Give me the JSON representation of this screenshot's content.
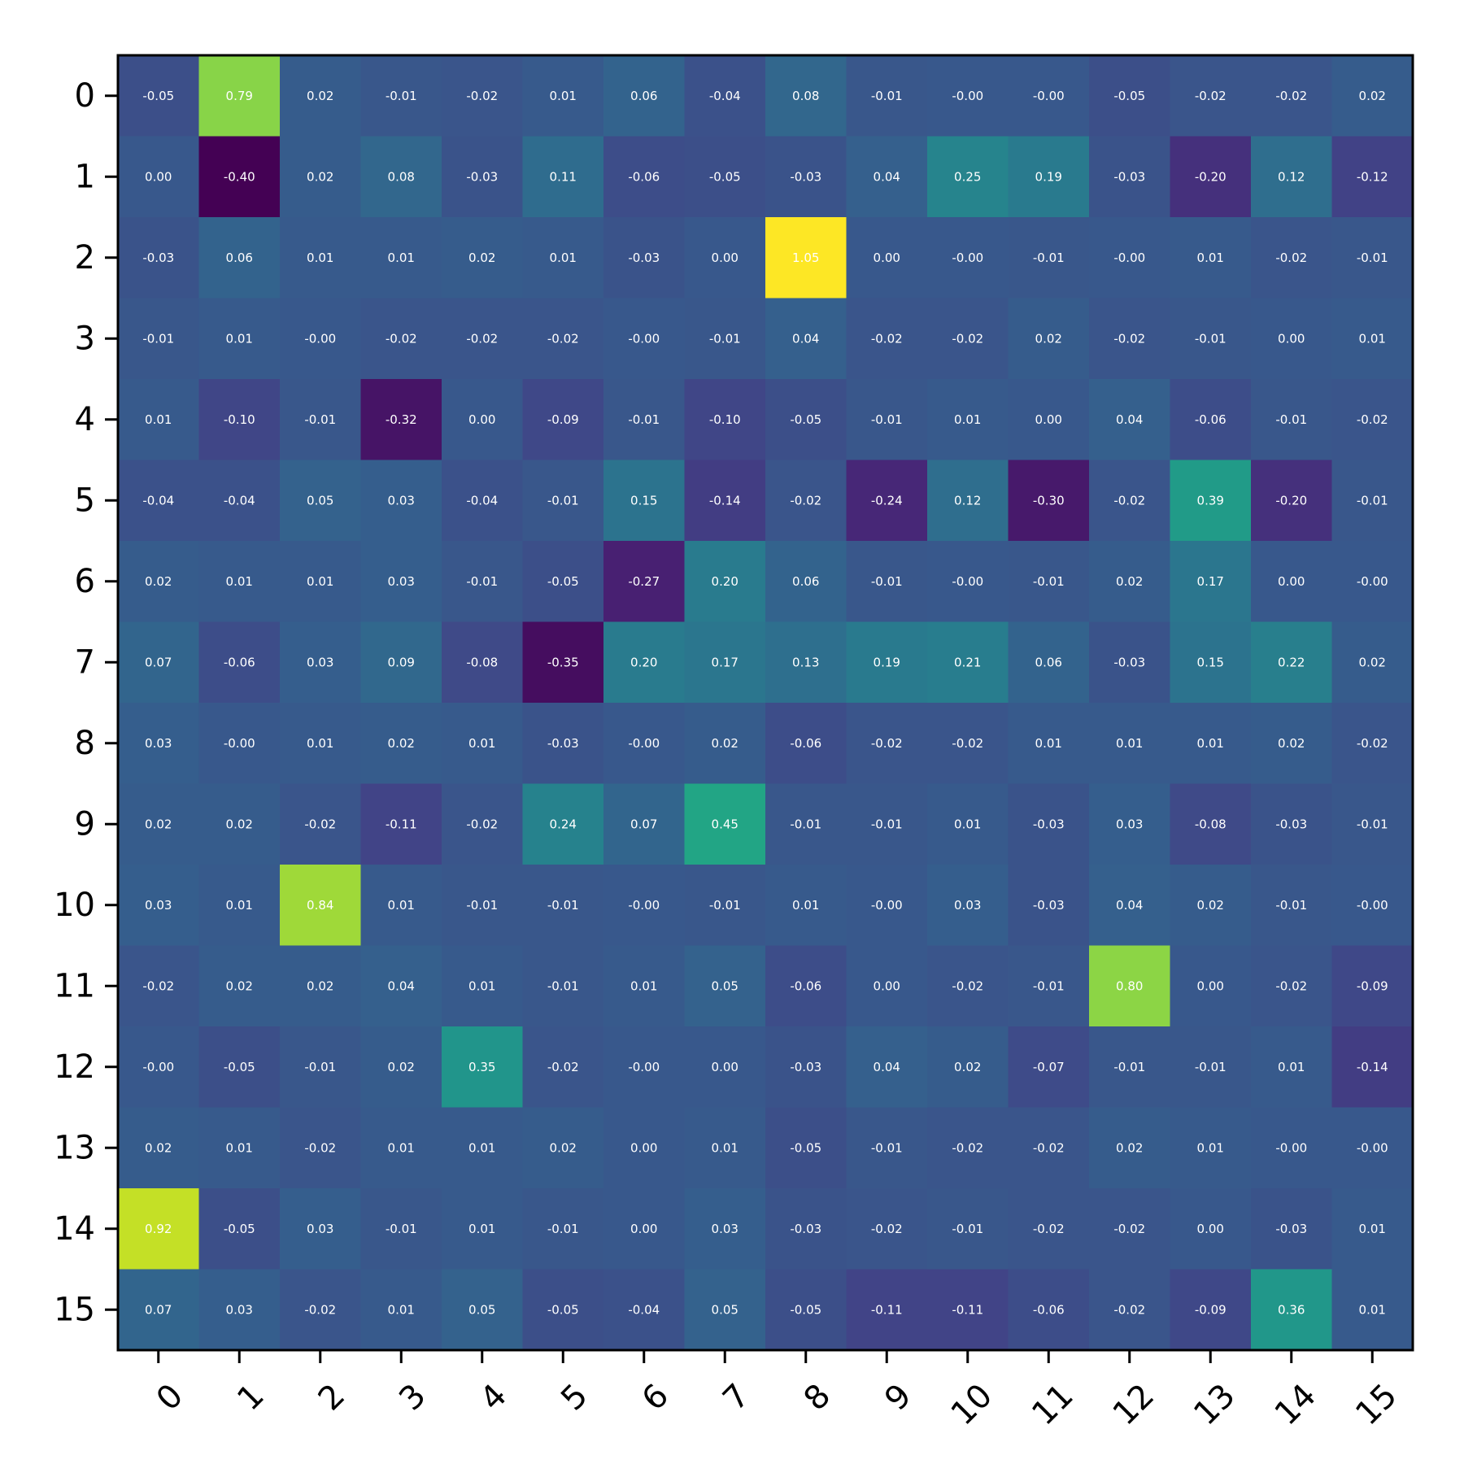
{
  "chart_data": {
    "type": "heatmap",
    "title": "",
    "xlabel": "",
    "ylabel": "",
    "colormap": "viridis",
    "vmin": -0.4,
    "vmax": 1.05,
    "x_categories": [
      "0",
      "1",
      "2",
      "3",
      "4",
      "5",
      "6",
      "7",
      "8",
      "9",
      "10",
      "11",
      "12",
      "13",
      "14",
      "15"
    ],
    "y_categories": [
      "0",
      "1",
      "2",
      "3",
      "4",
      "5",
      "6",
      "7",
      "8",
      "9",
      "10",
      "11",
      "12",
      "13",
      "14",
      "15"
    ],
    "values": [
      [
        -0.05,
        0.79,
        0.02,
        -0.01,
        -0.02,
        0.01,
        0.06,
        -0.04,
        0.08,
        -0.01,
        -0.0,
        -0.0,
        -0.05,
        -0.02,
        -0.02,
        0.02
      ],
      [
        0.0,
        -0.4,
        0.02,
        0.08,
        -0.03,
        0.11,
        -0.06,
        -0.05,
        -0.03,
        0.04,
        0.25,
        0.19,
        -0.03,
        -0.2,
        0.12,
        -0.12
      ],
      [
        -0.03,
        0.06,
        0.01,
        0.01,
        0.02,
        0.01,
        -0.03,
        0.0,
        1.05,
        0.0,
        -0.0,
        -0.01,
        -0.0,
        0.01,
        -0.02,
        -0.01
      ],
      [
        -0.01,
        0.01,
        -0.0,
        -0.02,
        -0.02,
        -0.02,
        -0.0,
        -0.01,
        0.04,
        -0.02,
        -0.02,
        0.02,
        -0.02,
        -0.01,
        0.0,
        0.01
      ],
      [
        0.01,
        -0.1,
        -0.01,
        -0.32,
        0.0,
        -0.09,
        -0.01,
        -0.1,
        -0.05,
        -0.01,
        0.01,
        0.0,
        0.04,
        -0.06,
        -0.01,
        -0.02
      ],
      [
        -0.04,
        -0.04,
        0.05,
        0.03,
        -0.04,
        -0.01,
        0.15,
        -0.14,
        -0.02,
        -0.24,
        0.12,
        -0.3,
        -0.02,
        0.39,
        -0.2,
        -0.01
      ],
      [
        0.02,
        0.01,
        0.01,
        0.03,
        -0.01,
        -0.05,
        -0.27,
        0.2,
        0.06,
        -0.01,
        -0.0,
        -0.01,
        0.02,
        0.17,
        0.0,
        -0.0
      ],
      [
        0.07,
        -0.06,
        0.03,
        0.09,
        -0.08,
        -0.35,
        0.2,
        0.17,
        0.13,
        0.19,
        0.21,
        0.06,
        -0.03,
        0.15,
        0.22,
        0.02
      ],
      [
        0.03,
        -0.0,
        0.01,
        0.02,
        0.01,
        -0.03,
        -0.0,
        0.02,
        -0.06,
        -0.02,
        -0.02,
        0.01,
        0.01,
        0.01,
        0.02,
        -0.02
      ],
      [
        0.02,
        0.02,
        -0.02,
        -0.11,
        -0.02,
        0.24,
        0.07,
        0.45,
        -0.01,
        -0.01,
        0.01,
        -0.03,
        0.03,
        -0.08,
        -0.03,
        -0.01
      ],
      [
        0.03,
        0.01,
        0.84,
        0.01,
        -0.01,
        -0.01,
        -0.0,
        -0.01,
        0.01,
        -0.0,
        0.03,
        -0.03,
        0.04,
        0.02,
        -0.01,
        -0.0
      ],
      [
        -0.02,
        0.02,
        0.02,
        0.04,
        0.01,
        -0.01,
        0.01,
        0.05,
        -0.06,
        0.0,
        -0.02,
        -0.01,
        0.8,
        0.0,
        -0.02,
        -0.09
      ],
      [
        -0.0,
        -0.05,
        -0.01,
        0.02,
        0.35,
        -0.02,
        -0.0,
        0.0,
        -0.03,
        0.04,
        0.02,
        -0.07,
        -0.01,
        -0.01,
        0.01,
        -0.14
      ],
      [
        0.02,
        0.01,
        -0.02,
        0.01,
        0.01,
        0.02,
        0.0,
        0.01,
        -0.05,
        -0.01,
        -0.02,
        -0.02,
        0.02,
        0.01,
        -0.0,
        -0.0
      ],
      [
        0.92,
        -0.05,
        0.03,
        -0.01,
        0.01,
        -0.01,
        0.0,
        0.03,
        -0.03,
        -0.02,
        -0.01,
        -0.02,
        -0.02,
        0.0,
        -0.03,
        0.01
      ],
      [
        0.07,
        0.03,
        -0.02,
        0.01,
        0.05,
        -0.05,
        -0.04,
        0.05,
        -0.05,
        -0.11,
        -0.11,
        -0.06,
        -0.02,
        -0.09,
        0.36,
        0.01
      ]
    ],
    "grid": false,
    "legend": "none"
  }
}
